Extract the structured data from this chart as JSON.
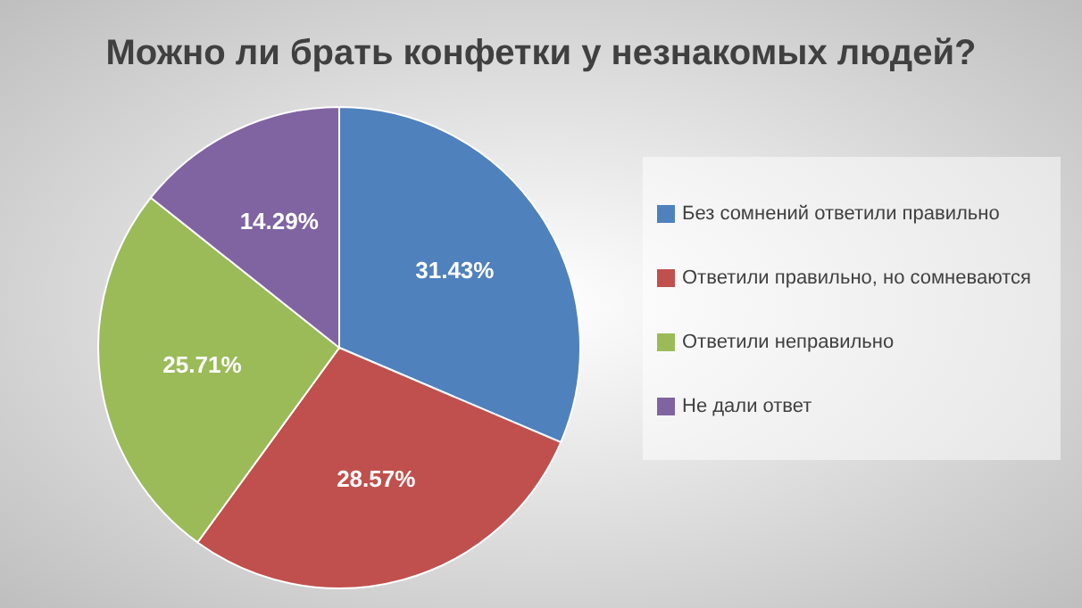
{
  "chart_data": {
    "type": "pie",
    "title": "Можно ли брать конфетки у незнакомых людей?",
    "categories": [
      "Без сомнений ответили правильно",
      "Ответили правильно, но сомневаются",
      "Ответили неправильно",
      "Не дали ответ"
    ],
    "values": [
      31.43,
      28.57,
      25.71,
      14.29
    ],
    "value_labels": [
      "31.43%",
      "28.57%",
      "25.71%",
      "14.29%"
    ],
    "colors": [
      "#4f81bd",
      "#c0504d",
      "#9bbb59",
      "#8064a2"
    ],
    "legend": "right"
  }
}
